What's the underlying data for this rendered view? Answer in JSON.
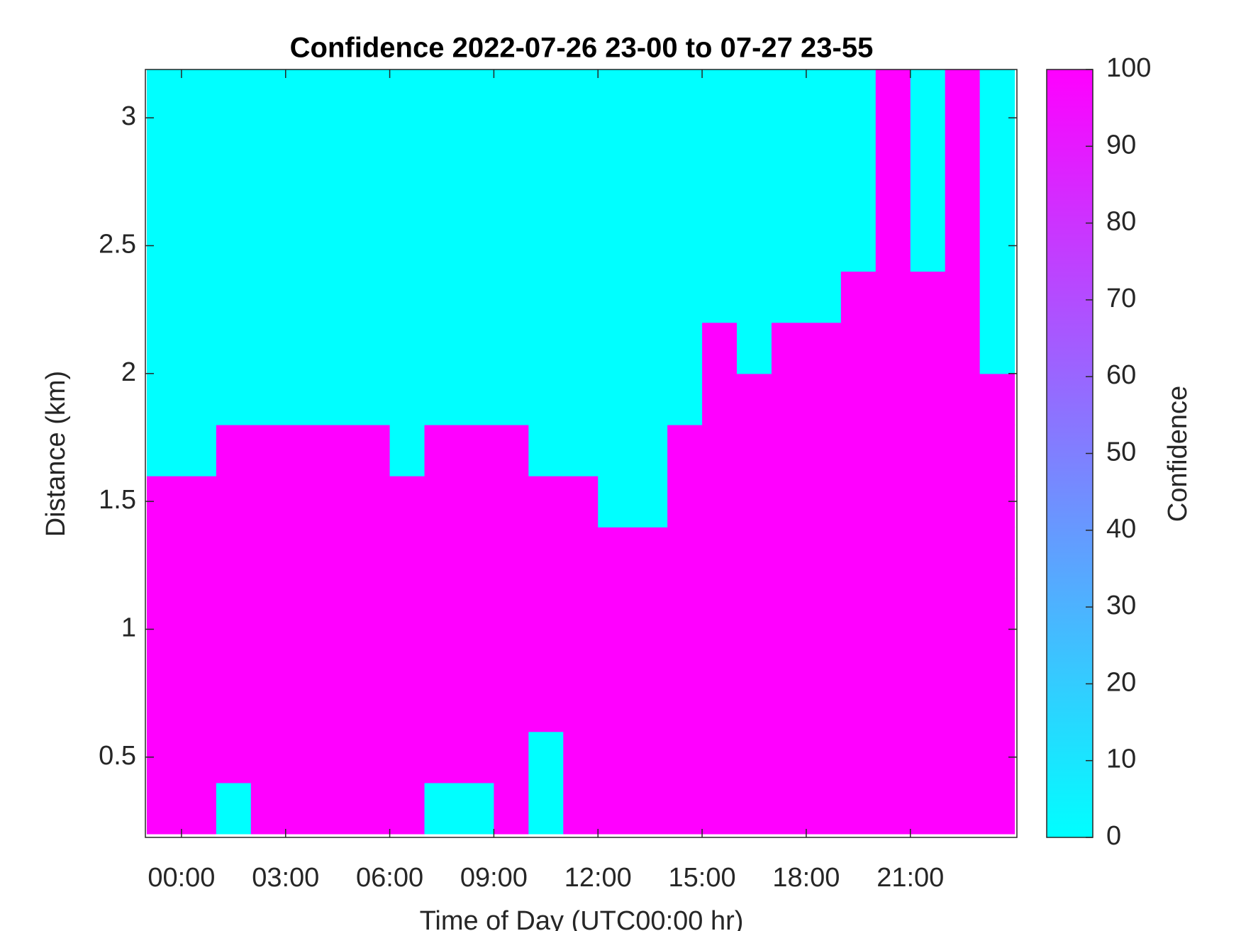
{
  "chart_data": {
    "type": "heatmap",
    "title": "Confidence 2022-07-26 23-00 to 07-27 23-55",
    "xlabel": "Time of Day (UTC00:00 hr)",
    "ylabel": "Distance (km)",
    "x": [
      -0.5,
      0.5,
      1.5,
      2.5,
      3.5,
      4.5,
      5.5,
      6.5,
      7.5,
      8.5,
      9.5,
      10.5,
      11.5,
      12.5,
      13.5,
      14.5,
      15.5,
      16.5,
      17.5,
      18.5,
      19.5,
      20.5,
      21.5,
      22.5,
      23.5
    ],
    "y": [
      0.3,
      0.5,
      0.7,
      0.9,
      1.1,
      1.3,
      1.5,
      1.7,
      1.9,
      2.1,
      2.3,
      2.5,
      2.7,
      2.9,
      3.1
    ],
    "z": [
      [
        100,
        100,
        0,
        100,
        100,
        100,
        100,
        100,
        0,
        0,
        100,
        0,
        100,
        100,
        100,
        100,
        100,
        100,
        100,
        100,
        100,
        100,
        100,
        100,
        100
      ],
      [
        100,
        100,
        100,
        100,
        100,
        100,
        100,
        100,
        100,
        100,
        100,
        0,
        100,
        100,
        100,
        100,
        100,
        100,
        100,
        100,
        100,
        100,
        100,
        100,
        100
      ],
      [
        100,
        100,
        100,
        100,
        100,
        100,
        100,
        100,
        100,
        100,
        100,
        100,
        100,
        100,
        100,
        100,
        100,
        100,
        100,
        100,
        100,
        100,
        100,
        100,
        100
      ],
      [
        100,
        100,
        100,
        100,
        100,
        100,
        100,
        100,
        100,
        100,
        100,
        100,
        100,
        100,
        100,
        100,
        100,
        100,
        100,
        100,
        100,
        100,
        100,
        100,
        100
      ],
      [
        100,
        100,
        100,
        100,
        100,
        100,
        100,
        100,
        100,
        100,
        100,
        100,
        100,
        100,
        100,
        100,
        100,
        100,
        100,
        100,
        100,
        100,
        100,
        100,
        100
      ],
      [
        100,
        100,
        100,
        100,
        100,
        100,
        100,
        100,
        100,
        100,
        100,
        100,
        100,
        100,
        100,
        100,
        100,
        100,
        100,
        100,
        100,
        100,
        100,
        100,
        100
      ],
      [
        100,
        100,
        100,
        100,
        100,
        100,
        100,
        100,
        100,
        100,
        100,
        100,
        100,
        0,
        0,
        100,
        100,
        100,
        100,
        100,
        100,
        100,
        100,
        100,
        100
      ],
      [
        0,
        0,
        100,
        100,
        100,
        100,
        100,
        0,
        100,
        100,
        100,
        0,
        0,
        0,
        0,
        100,
        100,
        100,
        100,
        100,
        100,
        100,
        100,
        100,
        100
      ],
      [
        0,
        0,
        0,
        0,
        0,
        0,
        0,
        0,
        0,
        0,
        0,
        0,
        0,
        0,
        0,
        0,
        100,
        100,
        100,
        100,
        100,
        100,
        100,
        100,
        100
      ],
      [
        0,
        0,
        0,
        0,
        0,
        0,
        0,
        0,
        0,
        0,
        0,
        0,
        0,
        0,
        0,
        0,
        100,
        0,
        100,
        100,
        100,
        100,
        100,
        100,
        0
      ],
      [
        0,
        0,
        0,
        0,
        0,
        0,
        0,
        0,
        0,
        0,
        0,
        0,
        0,
        0,
        0,
        0,
        0,
        0,
        0,
        0,
        100,
        100,
        100,
        100,
        0
      ],
      [
        0,
        0,
        0,
        0,
        0,
        0,
        0,
        0,
        0,
        0,
        0,
        0,
        0,
        0,
        0,
        0,
        0,
        0,
        0,
        0,
        0,
        100,
        0,
        100,
        0
      ],
      [
        0,
        0,
        0,
        0,
        0,
        0,
        0,
        0,
        0,
        0,
        0,
        0,
        0,
        0,
        0,
        0,
        0,
        0,
        0,
        0,
        0,
        100,
        0,
        100,
        0
      ],
      [
        0,
        0,
        0,
        0,
        0,
        0,
        0,
        0,
        0,
        0,
        0,
        0,
        0,
        0,
        0,
        0,
        0,
        0,
        0,
        0,
        0,
        100,
        0,
        100,
        0
      ],
      [
        0,
        0,
        0,
        0,
        0,
        0,
        0,
        0,
        0,
        0,
        0,
        0,
        0,
        0,
        0,
        0,
        0,
        0,
        0,
        0,
        0,
        100,
        0,
        100,
        0
      ]
    ],
    "xlim": [
      -1.04,
      24.07
    ],
    "ylim": [
      0.186,
      3.189
    ],
    "xticks": [
      {
        "value": 0,
        "label": "00:00"
      },
      {
        "value": 3,
        "label": "03:00"
      },
      {
        "value": 6,
        "label": "06:00"
      },
      {
        "value": 9,
        "label": "09:00"
      },
      {
        "value": 12,
        "label": "12:00"
      },
      {
        "value": 15,
        "label": "15:00"
      },
      {
        "value": 18,
        "label": "18:00"
      },
      {
        "value": 21,
        "label": "21:00"
      }
    ],
    "yticks": [
      0.5,
      1,
      1.5,
      2,
      2.5,
      3
    ],
    "colormap": [
      "#00ffff",
      "#ff00ff"
    ],
    "colorbar": {
      "label": "Confidence",
      "lim": [
        0,
        100
      ],
      "ticks": [
        0,
        10,
        20,
        30,
        40,
        50,
        60,
        70,
        80,
        90,
        100
      ]
    }
  }
}
